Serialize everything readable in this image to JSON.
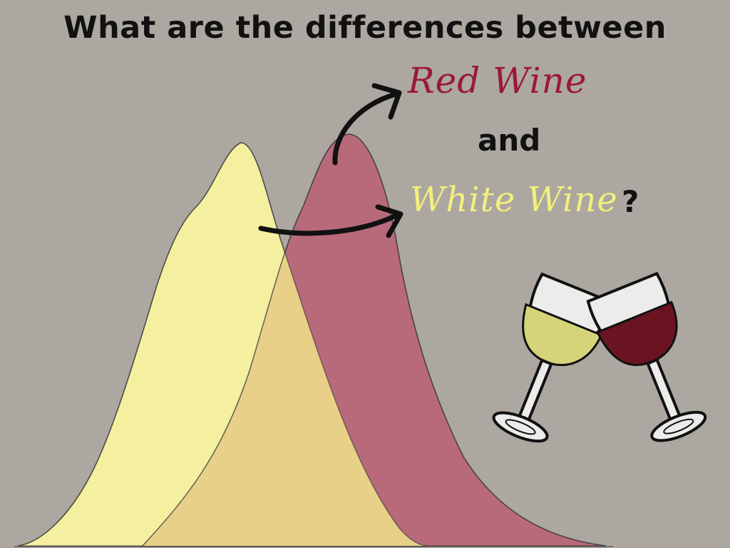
{
  "title": "What are the differences between",
  "labels": {
    "red_wine": "Red Wine",
    "and": "and",
    "white_wine": "White Wine",
    "question_mark": "?"
  },
  "colors": {
    "background": "#aca7a1",
    "white_wine_curve": "#f5f0a0",
    "red_wine_curve": "#b86a7a",
    "overlap": "#e8d088",
    "red_text": "#9c1838",
    "white_text": "#f2f07c",
    "red_wine_liquid": "#6a1422",
    "white_wine_liquid": "#d8d880"
  },
  "icons": {
    "arrow_to_red": "curved-arrow-icon",
    "arrow_to_white": "curved-arrow-icon",
    "glasses": "clinking-wine-glasses-icon"
  }
}
